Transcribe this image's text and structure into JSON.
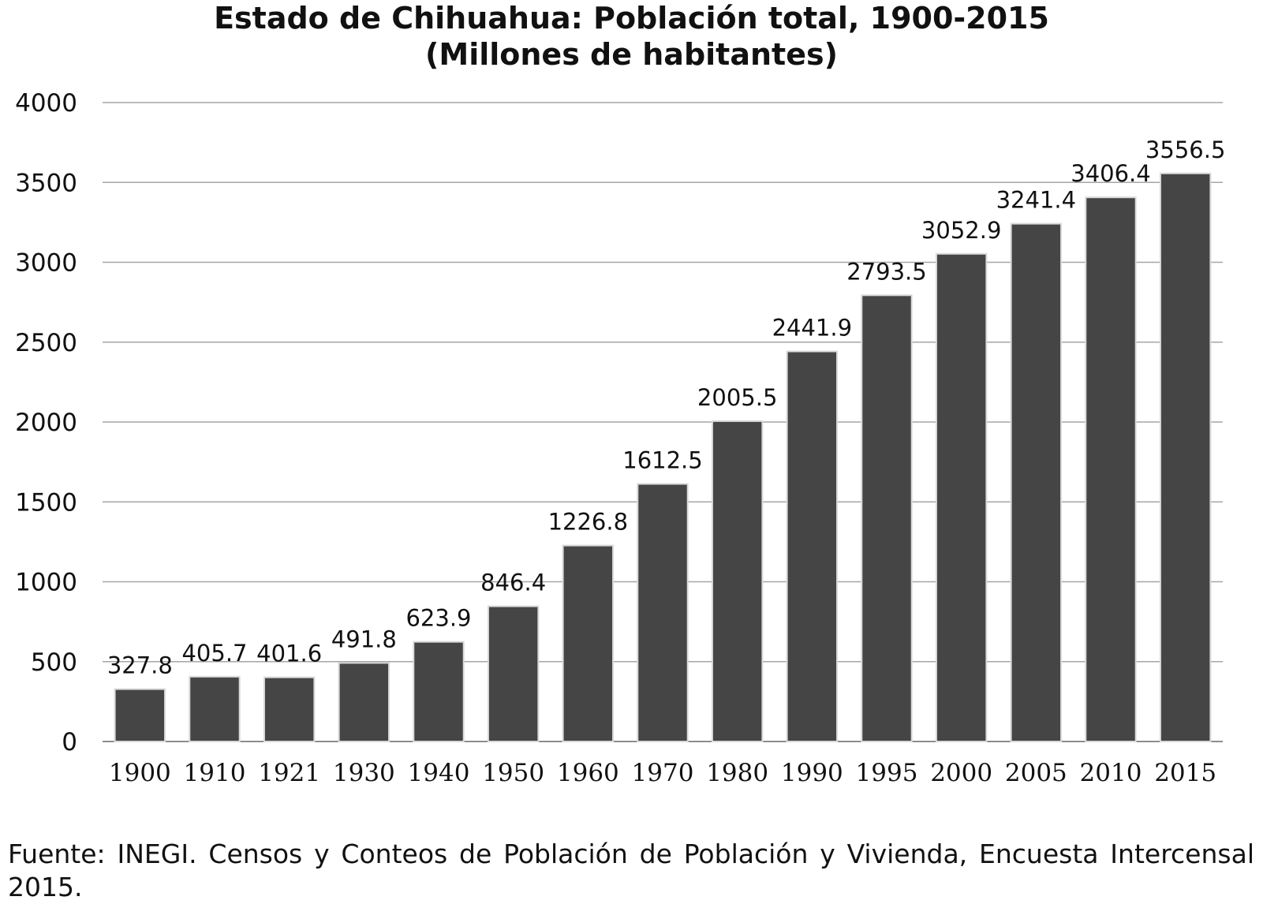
{
  "chart_data": {
    "type": "bar",
    "title_line1": "Estado de Chihuahua: Población total, 1900-2015",
    "title_line2": "(Millones de habitantes)",
    "categories": [
      "1900",
      "1910",
      "1921",
      "1930",
      "1940",
      "1950",
      "1960",
      "1970",
      "1980",
      "1990",
      "1995",
      "2000",
      "2005",
      "2010",
      "2015"
    ],
    "values": [
      327.8,
      405.7,
      401.6,
      491.8,
      623.9,
      846.4,
      1226.8,
      1612.5,
      2005.5,
      2441.9,
      2793.5,
      3052.9,
      3241.4,
      3406.4,
      3556.5
    ],
    "value_labels": [
      "327.8",
      "405.7",
      "401.6",
      "491.8",
      "623.9",
      "846.4",
      "1226.8",
      "1612.5",
      "2005.5",
      "2441.9",
      "2793.5",
      "3052.9",
      "3241.4",
      "3406.4",
      "3556.5"
    ],
    "yticks": [
      "0",
      "500",
      "1000",
      "1500",
      "2000",
      "2500",
      "3000",
      "3500",
      "4000"
    ],
    "ylim": [
      0,
      4000
    ],
    "grid": true,
    "legend": "none",
    "bar_color": "#454545",
    "grid_color": "#a6a6a6"
  },
  "source_text": "Fuente: INEGI. Censos y Conteos de Población de Población y Vivienda, Encuesta Intercensal 2015."
}
